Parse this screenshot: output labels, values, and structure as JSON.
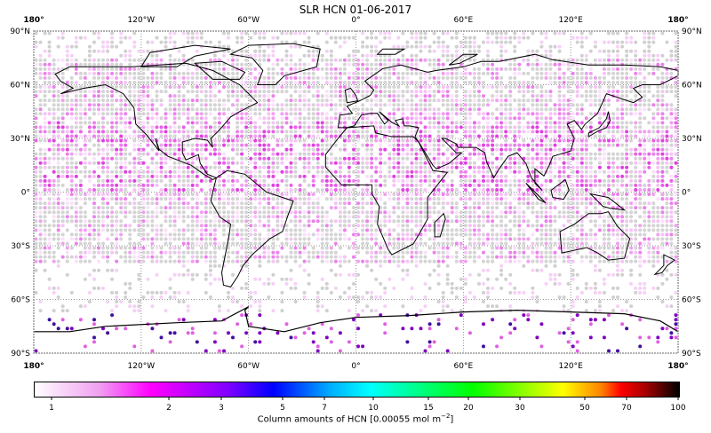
{
  "title": "SLR HCN 01-06-2017",
  "map": {
    "projection": "plate-carree",
    "lon_ticks": [
      "180°",
      "120°W",
      "60°W",
      "0°",
      "60°E",
      "120°E",
      "180°"
    ],
    "lat_ticks": [
      "90°N",
      "60°N",
      "30°N",
      "0°",
      "30°S",
      "60°S",
      "90°S"
    ],
    "grid": true,
    "no_data_color": "#c8c8c8",
    "coastline_color": "#000000"
  },
  "colorbar": {
    "label": "Column amounts of HCN [0.00055 mol m",
    "label_sup": "−2",
    "label_end": "]",
    "scale": "log",
    "range": [
      0.88,
      100
    ],
    "ticks": [
      "1",
      "2",
      "3",
      "5",
      "7",
      "10",
      "15",
      "20",
      "30",
      "50",
      "70",
      "100"
    ],
    "colors": [
      "#ffffff",
      "#ff00ff",
      "#0000ff",
      "#00ffff",
      "#00ff00",
      "#ffff00",
      "#ff0000",
      "#000000"
    ]
  }
}
